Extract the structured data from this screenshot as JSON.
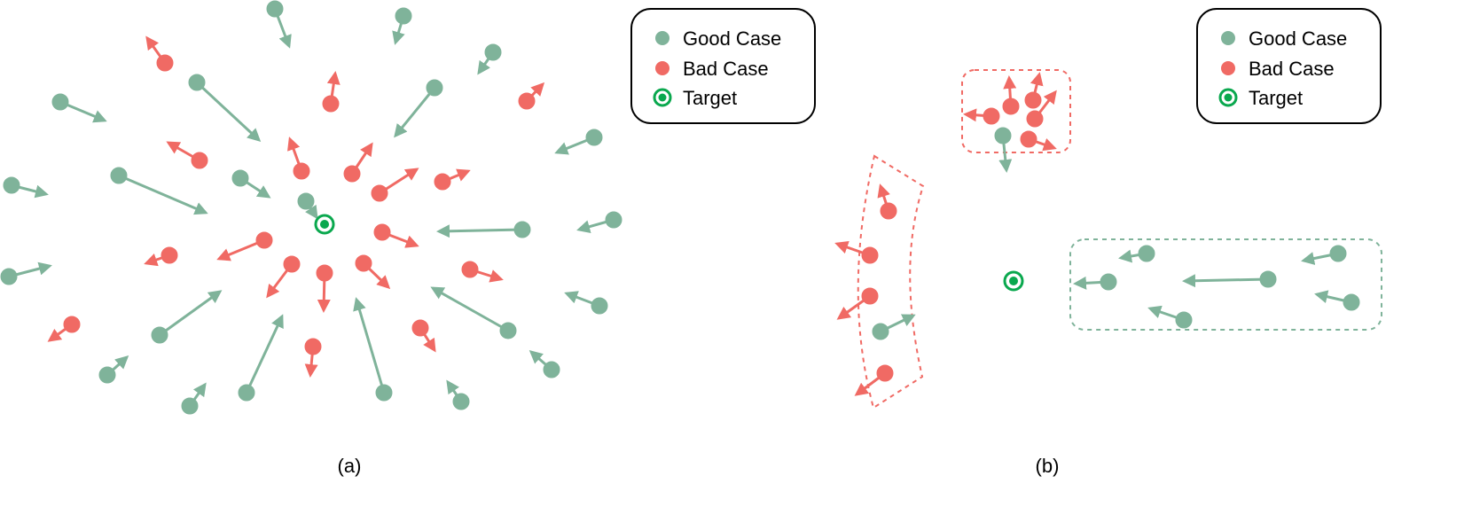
{
  "colors": {
    "good": "#7fb39a",
    "bad": "#f06a64",
    "target": "#0aa84e",
    "legend_border": "#000000"
  },
  "panel_a": {
    "caption": "(a)",
    "legend": {
      "good_label": "Good Case",
      "bad_label": "Bad Case",
      "target_label": "Target"
    }
  },
  "panel_b": {
    "caption": "(b)",
    "legend": {
      "good_label": "Good Case",
      "bad_label": "Bad Case",
      "target_label": "Target"
    }
  }
}
